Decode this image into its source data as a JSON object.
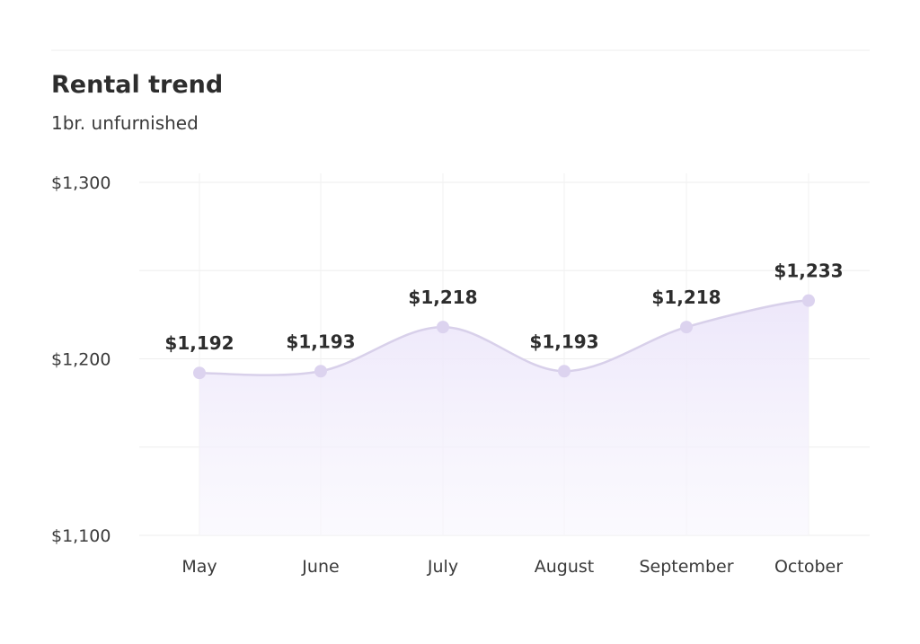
{
  "chart_data": {
    "type": "area",
    "title": "Rental trend",
    "subtitle": "1br. unfurnished",
    "categories": [
      "May",
      "June",
      "July",
      "August",
      "September",
      "October"
    ],
    "values": [
      1192,
      1193,
      1218,
      1193,
      1218,
      1233
    ],
    "data_labels": [
      "$1,192",
      "$1,193",
      "$1,218",
      "$1,193",
      "$1,218",
      "$1,233"
    ],
    "ylim": [
      1100,
      1300
    ],
    "y_tick_values": [
      1100,
      1200,
      1300
    ],
    "y_tick_labels": [
      "$1,100",
      "$1,200",
      "$1,300"
    ],
    "grid": true,
    "legend": "none",
    "colors": {
      "line": "#d8d0ea",
      "fill": "#f1edfa",
      "point": "#dcd3ef",
      "grid": "#ededed",
      "text": "#2d2d2d"
    }
  }
}
